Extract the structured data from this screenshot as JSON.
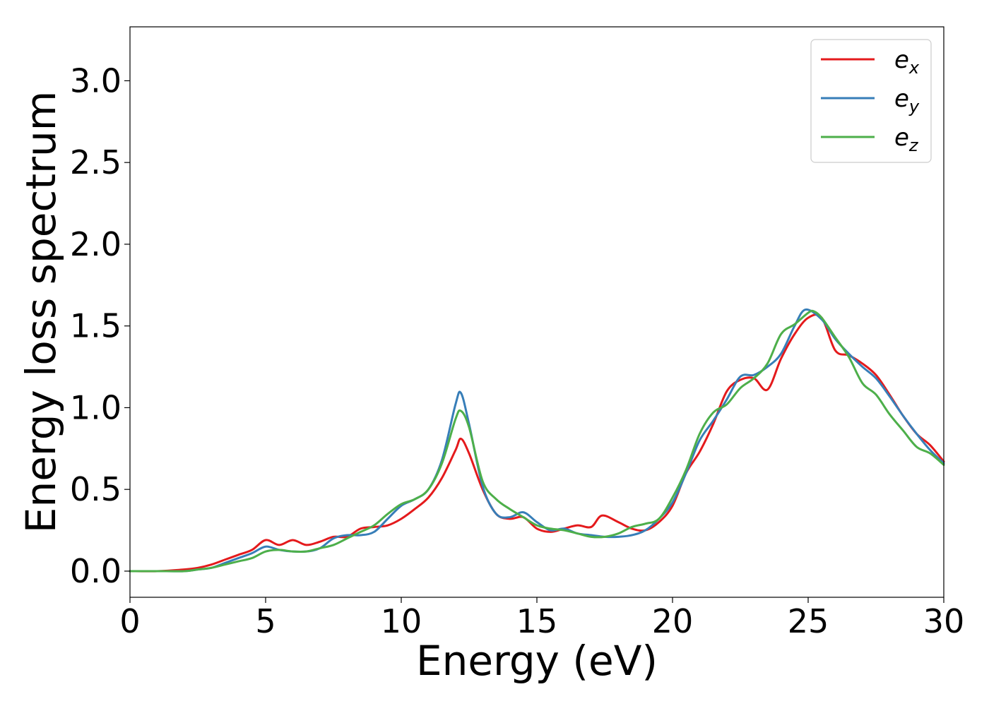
{
  "chart_data": {
    "type": "line",
    "xlabel": "Energy (eV)",
    "ylabel": "Energy loss spectrum",
    "xlim": [
      0,
      30
    ],
    "ylim": [
      -0.16,
      3.33
    ],
    "xticks": [
      0,
      5,
      10,
      15,
      20,
      25,
      30
    ],
    "xtick_labels": [
      "0",
      "5",
      "10",
      "15",
      "20",
      "25",
      "30"
    ],
    "yticks": [
      0.0,
      0.5,
      1.0,
      1.5,
      2.0,
      2.5,
      3.0
    ],
    "ytick_labels": [
      "0.0",
      "0.5",
      "1.0",
      "1.5",
      "2.0",
      "2.5",
      "3.0"
    ],
    "grid": false,
    "legend_position": "top-right",
    "series": [
      {
        "name": "e",
        "subscript": "x",
        "color": "#e41a1c",
        "x": [
          0,
          1,
          2,
          2.5,
          3,
          3.5,
          4,
          4.5,
          5,
          5.5,
          6,
          6.5,
          7,
          7.5,
          8,
          8.5,
          9,
          9.5,
          10,
          10.5,
          11,
          11.5,
          12,
          12.2,
          12.5,
          13,
          13.5,
          14,
          14.5,
          15,
          15.5,
          16,
          16.5,
          17,
          17.4,
          18,
          18.5,
          19,
          19.5,
          20,
          20.5,
          21,
          21.5,
          22,
          22.5,
          23,
          23.5,
          24,
          24.5,
          25,
          25.5,
          26,
          26.5,
          27,
          27.5,
          28,
          28.5,
          29,
          29.5,
          30
        ],
        "y": [
          0.0,
          0.0,
          0.01,
          0.02,
          0.04,
          0.07,
          0.1,
          0.13,
          0.19,
          0.16,
          0.19,
          0.16,
          0.18,
          0.21,
          0.21,
          0.26,
          0.27,
          0.28,
          0.32,
          0.38,
          0.45,
          0.57,
          0.74,
          0.81,
          0.72,
          0.5,
          0.35,
          0.32,
          0.33,
          0.26,
          0.24,
          0.26,
          0.28,
          0.27,
          0.34,
          0.3,
          0.26,
          0.25,
          0.3,
          0.4,
          0.6,
          0.73,
          0.9,
          1.1,
          1.17,
          1.18,
          1.11,
          1.3,
          1.45,
          1.55,
          1.55,
          1.35,
          1.32,
          1.27,
          1.2,
          1.08,
          0.95,
          0.84,
          0.77,
          0.67
        ]
      },
      {
        "name": "e",
        "subscript": "y",
        "color": "#377eb8",
        "x": [
          0,
          1,
          2,
          2.5,
          3,
          3.5,
          4,
          4.5,
          5,
          5.5,
          6,
          6.5,
          7,
          7.5,
          8,
          8.5,
          9,
          9.5,
          10,
          10.5,
          11,
          11.5,
          12,
          12.2,
          12.5,
          13,
          13.5,
          14,
          14.5,
          15,
          15.5,
          16,
          16.5,
          17,
          17.5,
          18,
          18.5,
          19,
          19.5,
          20,
          20.5,
          21,
          21.5,
          22,
          22.5,
          23,
          23.5,
          24,
          24.5,
          24.9,
          25.5,
          26,
          26.5,
          27,
          27.5,
          28,
          28.5,
          29,
          29.5,
          30
        ],
        "y": [
          0.0,
          0.0,
          0.0,
          0.01,
          0.02,
          0.05,
          0.08,
          0.11,
          0.15,
          0.13,
          0.12,
          0.12,
          0.14,
          0.2,
          0.22,
          0.22,
          0.24,
          0.32,
          0.4,
          0.44,
          0.5,
          0.68,
          1.02,
          1.09,
          0.9,
          0.52,
          0.35,
          0.33,
          0.36,
          0.3,
          0.25,
          0.26,
          0.23,
          0.22,
          0.21,
          0.21,
          0.22,
          0.25,
          0.32,
          0.42,
          0.6,
          0.8,
          0.92,
          1.05,
          1.19,
          1.2,
          1.25,
          1.33,
          1.5,
          1.6,
          1.54,
          1.42,
          1.33,
          1.25,
          1.18,
          1.07,
          0.95,
          0.84,
          0.74,
          0.66
        ]
      },
      {
        "name": "e",
        "subscript": "z",
        "color": "#4daf4a",
        "x": [
          0,
          1,
          2,
          2.5,
          3,
          3.5,
          4,
          4.5,
          5,
          5.5,
          6,
          6.5,
          7,
          7.5,
          8,
          8.5,
          9,
          9.5,
          10,
          10.5,
          11,
          11.5,
          12,
          12.2,
          12.5,
          13,
          13.5,
          14,
          14.5,
          15,
          15.5,
          16,
          16.5,
          17,
          17.5,
          18,
          18.5,
          19,
          19.5,
          20,
          20.5,
          21,
          21.5,
          22,
          22.5,
          23,
          23.5,
          24,
          24.5,
          25,
          25.2,
          25.5,
          26,
          26.5,
          27,
          27.5,
          28,
          28.5,
          29,
          29.5,
          30
        ],
        "y": [
          0.0,
          0.0,
          0.0,
          0.01,
          0.02,
          0.04,
          0.06,
          0.08,
          0.12,
          0.13,
          0.12,
          0.12,
          0.14,
          0.16,
          0.2,
          0.24,
          0.28,
          0.35,
          0.41,
          0.44,
          0.5,
          0.66,
          0.93,
          0.98,
          0.88,
          0.55,
          0.44,
          0.38,
          0.33,
          0.28,
          0.26,
          0.25,
          0.23,
          0.21,
          0.21,
          0.23,
          0.27,
          0.29,
          0.32,
          0.45,
          0.62,
          0.84,
          0.97,
          1.02,
          1.12,
          1.18,
          1.27,
          1.45,
          1.51,
          1.58,
          1.59,
          1.55,
          1.43,
          1.31,
          1.15,
          1.08,
          0.96,
          0.86,
          0.76,
          0.72,
          0.65
        ]
      }
    ]
  }
}
